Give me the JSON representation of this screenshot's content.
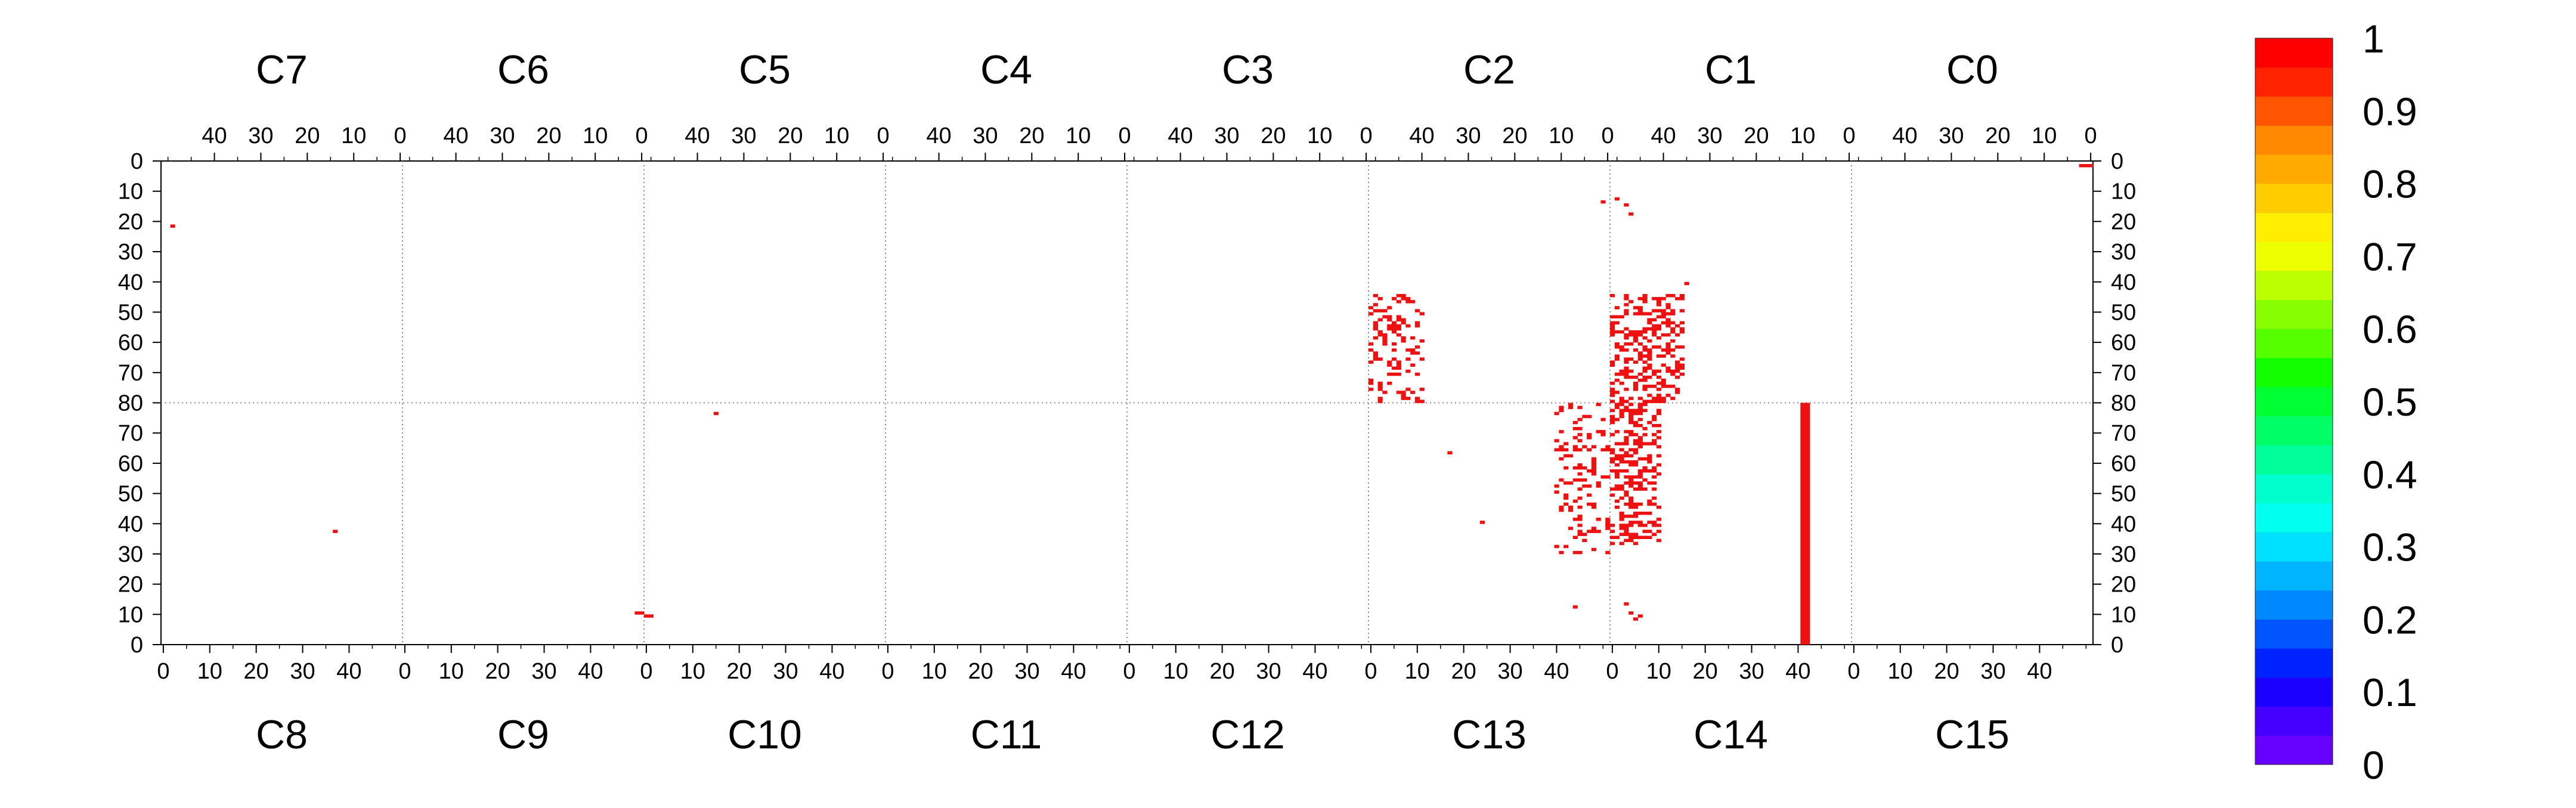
{
  "chart_data": {
    "type": "heatmap",
    "chips_top": [
      "C7",
      "C6",
      "C5",
      "C4",
      "C3",
      "C2",
      "C1",
      "C0"
    ],
    "chips_bottom": [
      "C8",
      "C9",
      "C10",
      "C11",
      "C12",
      "C13",
      "C14",
      "C15"
    ],
    "top_col_ticks": [
      "40",
      "30",
      "20",
      "10",
      "0"
    ],
    "bottom_col_ticks": [
      "0",
      "10",
      "20",
      "30",
      "40"
    ],
    "top_col_tick_values": [
      40,
      30,
      20,
      10,
      0
    ],
    "bottom_col_tick_values": [
      0,
      10,
      20,
      30,
      40
    ],
    "top_row_ticks": [
      "0",
      "10",
      "20",
      "30",
      "40",
      "50",
      "60",
      "70",
      "80"
    ],
    "top_row_tick_values": [
      0,
      10,
      20,
      30,
      40,
      50,
      60,
      70,
      80
    ],
    "bottom_row_ticks": [
      "70",
      "60",
      "50",
      "40",
      "30",
      "20",
      "10",
      "0"
    ],
    "bottom_row_tick_values": [
      70,
      60,
      50,
      40,
      30,
      20,
      10,
      0
    ],
    "cols_per_chip": 52,
    "rows_per_half": 80,
    "colorbar": {
      "min": 0,
      "max": 1,
      "tick_labels": [
        "0",
        "0.1",
        "0.2",
        "0.3",
        "0.4",
        "0.5",
        "0.6",
        "0.7",
        "0.8",
        "0.9",
        "1"
      ],
      "tick_values": [
        0,
        0.1,
        0.2,
        0.3,
        0.4,
        0.5,
        0.6,
        0.7,
        0.8,
        0.9,
        1
      ],
      "colors": [
        "#6600ff",
        "#4400ff",
        "#1a00ff",
        "#0022ff",
        "#0055ff",
        "#0088ff",
        "#00b4ff",
        "#00e0ff",
        "#00ffee",
        "#00ffcc",
        "#00ff99",
        "#00ff66",
        "#00ff33",
        "#11ff00",
        "#55ff00",
        "#88ff00",
        "#bbff00",
        "#eeff00",
        "#ffee00",
        "#ffcc00",
        "#ffaa00",
        "#ff8800",
        "#ff5500",
        "#ff2200",
        "#ff0000"
      ]
    },
    "hit_color": "#ee1111",
    "cells": [
      {
        "half": "top",
        "chip": 7,
        "col": 49,
        "row": 21
      },
      {
        "half": "top",
        "chip": 0,
        "col": 0,
        "row": 1
      },
      {
        "half": "top",
        "chip": 0,
        "col": 1,
        "row": 1
      },
      {
        "half": "top",
        "chip": 0,
        "col": 2,
        "row": 1
      },
      {
        "half": "top",
        "chip": 2,
        "col": 1,
        "row": 13
      },
      {
        "half": "top",
        "chip": 1,
        "col": 50,
        "row": 12
      },
      {
        "half": "top",
        "chip": 1,
        "col": 48,
        "row": 14
      },
      {
        "half": "top",
        "chip": 1,
        "col": 47,
        "row": 17
      },
      {
        "half": "top",
        "chip": 1,
        "col": 35,
        "row": 40
      },
      {
        "half": "top",
        "chip": 1,
        "col": 39,
        "row": 62
      },
      {
        "half": "top",
        "chip": 1,
        "col": 38,
        "row": 64
      },
      {
        "half": "top",
        "chip": 1,
        "col": 38,
        "row": 74
      },
      {
        "half": "bottom",
        "chip": 10,
        "col": 15,
        "row": 76
      },
      {
        "half": "bottom",
        "chip": 8,
        "col": 37,
        "row": 37
      },
      {
        "half": "bottom",
        "chip": 9,
        "col": 50,
        "row": 10
      },
      {
        "half": "bottom",
        "chip": 9,
        "col": 51,
        "row": 10
      },
      {
        "half": "bottom",
        "chip": 10,
        "col": 0,
        "row": 9
      },
      {
        "half": "bottom",
        "chip": 10,
        "col": 1,
        "row": 9
      },
      {
        "half": "bottom",
        "chip": 13,
        "col": 17,
        "row": 63
      },
      {
        "half": "bottom",
        "chip": 13,
        "col": 24,
        "row": 40
      },
      {
        "half": "bottom",
        "chip": 13,
        "col": 44,
        "row": 12
      },
      {
        "half": "bottom",
        "chip": 14,
        "col": 3,
        "row": 13
      },
      {
        "half": "bottom",
        "chip": 14,
        "col": 4,
        "row": 10
      },
      {
        "half": "bottom",
        "chip": 14,
        "col": 5,
        "row": 8
      },
      {
        "half": "bottom",
        "chip": 14,
        "col": 6,
        "row": 9
      }
    ],
    "clusters": [
      {
        "half": "top",
        "chip": 2,
        "col_min": 40,
        "col_max": 51,
        "row_min": 44,
        "row_max": 80,
        "fill": 0.25,
        "seed": 11
      },
      {
        "half": "top",
        "chip": 1,
        "col_min": 36,
        "col_max": 51,
        "row_min": 44,
        "row_max": 80,
        "fill": 0.42,
        "seed": 23
      },
      {
        "half": "bottom",
        "chip": 13,
        "col_min": 40,
        "col_max": 51,
        "row_min": 30,
        "row_max": 80,
        "fill": 0.25,
        "seed": 37
      },
      {
        "half": "bottom",
        "chip": 14,
        "col_min": 0,
        "col_max": 10,
        "row_min": 33,
        "row_max": 80,
        "fill": 0.42,
        "seed": 53
      }
    ],
    "column_strips": [
      {
        "half": "bottom",
        "chip": 14,
        "col": 41,
        "row_min": 0,
        "row_max": 80
      },
      {
        "half": "bottom",
        "chip": 14,
        "col": 42,
        "row_min": 0,
        "row_max": 80
      }
    ]
  }
}
